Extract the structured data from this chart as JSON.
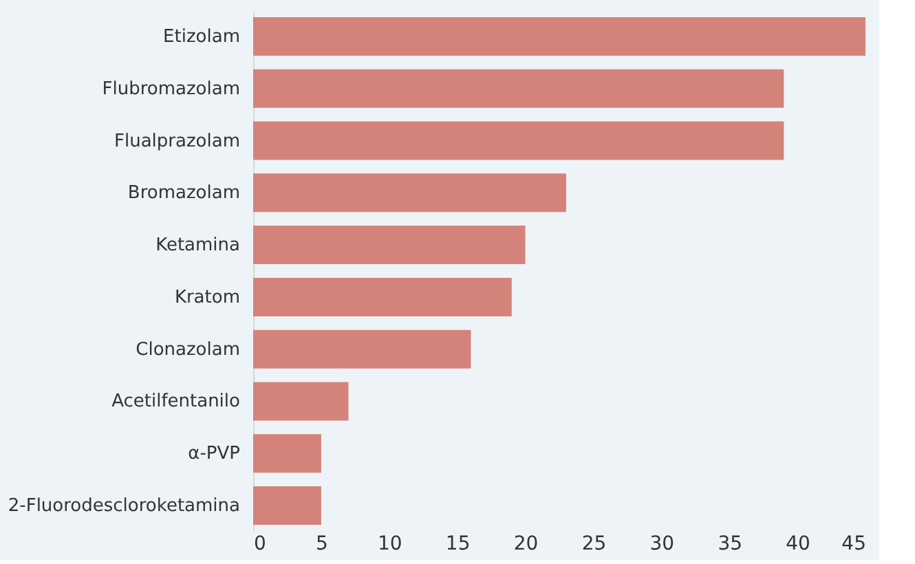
{
  "chart_data": {
    "type": "bar",
    "orientation": "horizontal",
    "categories": [
      "Etizolam",
      "Flubromazolam",
      "Flualprazolam",
      "Bromazolam",
      "Ketamina",
      "Kratom",
      "Clonazolam",
      "Acetilfentanilo",
      "α-PVP",
      "2-Fluorodescloroketamina"
    ],
    "values": [
      45,
      39,
      39,
      23,
      20,
      19,
      16,
      7,
      5,
      5
    ],
    "color": "#d4837a",
    "xlim": [
      0,
      45
    ],
    "xticks": [
      0,
      5,
      10,
      15,
      20,
      25,
      30,
      35,
      40,
      45
    ],
    "grid": false
  }
}
